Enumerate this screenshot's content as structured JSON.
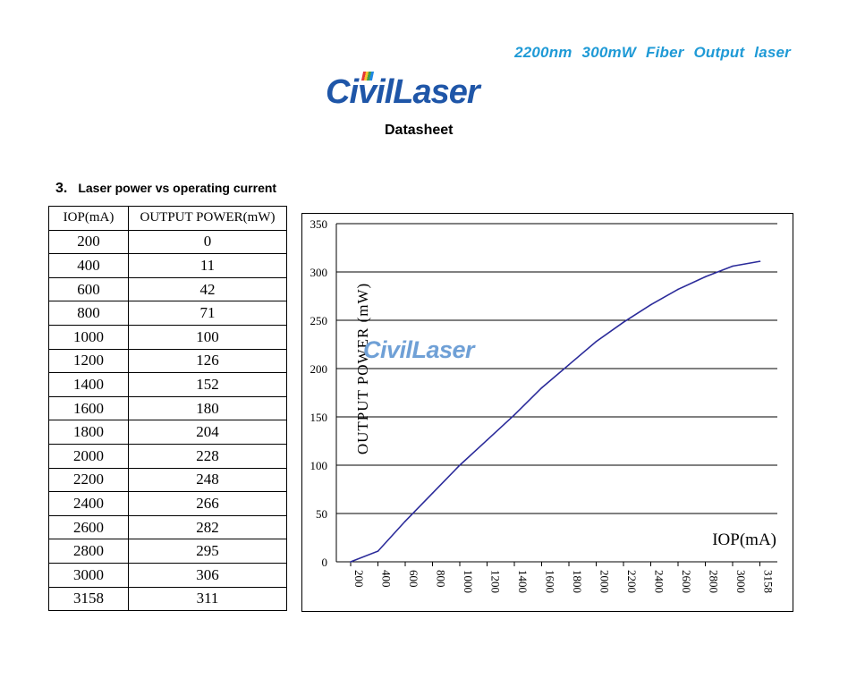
{
  "header": {
    "product_title": "2200nm  300mW  Fiber  Output  laser",
    "logo_text": "CivilLaser",
    "logo_prefix": "Ci",
    "logo_v": "v",
    "logo_suffix": "ilLaser",
    "doc_type": "Datasheet"
  },
  "section": {
    "number": "3.",
    "title": "Laser power vs operating current"
  },
  "table": {
    "columns": [
      "IOP(mA)",
      "OUTPUT  POWER(mW)"
    ],
    "rows": [
      [
        "200",
        "0"
      ],
      [
        "400",
        "11"
      ],
      [
        "600",
        "42"
      ],
      [
        "800",
        "71"
      ],
      [
        "1000",
        "100"
      ],
      [
        "1200",
        "126"
      ],
      [
        "1400",
        "152"
      ],
      [
        "1600",
        "180"
      ],
      [
        "1800",
        "204"
      ],
      [
        "2000",
        "228"
      ],
      [
        "2200",
        "248"
      ],
      [
        "2400",
        "266"
      ],
      [
        "2600",
        "282"
      ],
      [
        "2800",
        "295"
      ],
      [
        "3000",
        "306"
      ],
      [
        "3158",
        "311"
      ]
    ]
  },
  "chart_data": {
    "type": "line",
    "xlabel": "IOP(mA)",
    "ylabel": "OUTPUT POWER (mW)",
    "watermark": "CivilLaser",
    "x": [
      "200",
      "400",
      "600",
      "800",
      "1000",
      "1200",
      "1400",
      "1600",
      "1800",
      "2000",
      "2200",
      "2400",
      "2600",
      "2800",
      "3000",
      "3158"
    ],
    "series": [
      {
        "values": [
          0,
          11,
          42,
          71,
          100,
          126,
          152,
          180,
          204,
          228,
          248,
          266,
          282,
          295,
          306,
          311
        ]
      }
    ],
    "yticks": [
      0,
      50,
      100,
      150,
      200,
      250,
      300,
      350
    ],
    "ylim": [
      0,
      350
    ],
    "grid": "horizontal",
    "line_color": "#2b2b9a"
  }
}
